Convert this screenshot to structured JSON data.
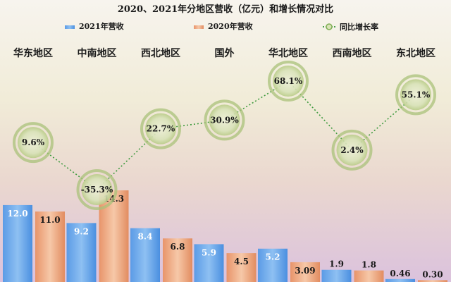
{
  "chart_data": {
    "type": "bar",
    "title": "2020、2021年分地区营收（亿元）和增长情况对比",
    "categories": [
      "华东地区",
      "中南地区",
      "西北地区",
      "国外",
      "华北地区",
      "西南地区",
      "东北地区"
    ],
    "series": [
      {
        "name": "2021年营收",
        "type": "bar",
        "values": [
          12.0,
          9.2,
          8.4,
          5.9,
          5.2,
          1.9,
          0.46
        ],
        "labels": [
          "12.0",
          "9.2",
          "8.4",
          "5.9",
          "5.2",
          "1.9",
          "0.46"
        ]
      },
      {
        "name": "2020年营收",
        "type": "bar",
        "values": [
          11.0,
          14.3,
          6.8,
          4.5,
          3.09,
          1.8,
          0.3
        ],
        "labels": [
          "11.0",
          "14.3",
          "6.8",
          "4.5",
          "3.09",
          "1.8",
          "0.30"
        ]
      },
      {
        "name": "同比增长率",
        "type": "line",
        "values": [
          9.6,
          -35.3,
          22.7,
          30.9,
          68.1,
          2.4,
          55.1
        ],
        "labels": [
          "9.6%",
          "-35.3%",
          "22.7%",
          "30.9%",
          "68.1%",
          "2.4%",
          "55.1%"
        ]
      }
    ],
    "ylim_bar": [
      0,
      18
    ],
    "ylim_rate": [
      -40,
      80
    ],
    "legend": "top",
    "grid": false,
    "colors": {
      "bar_2021": "#4a90e2",
      "bar_2021_light": "#8fbff0",
      "bar_2020": "#e8956a",
      "bar_2020_light": "#f4c4a6",
      "line": "#4aa14a",
      "bubble": "#d9e3b6",
      "bubble_ring": "#9bb56b"
    }
  }
}
